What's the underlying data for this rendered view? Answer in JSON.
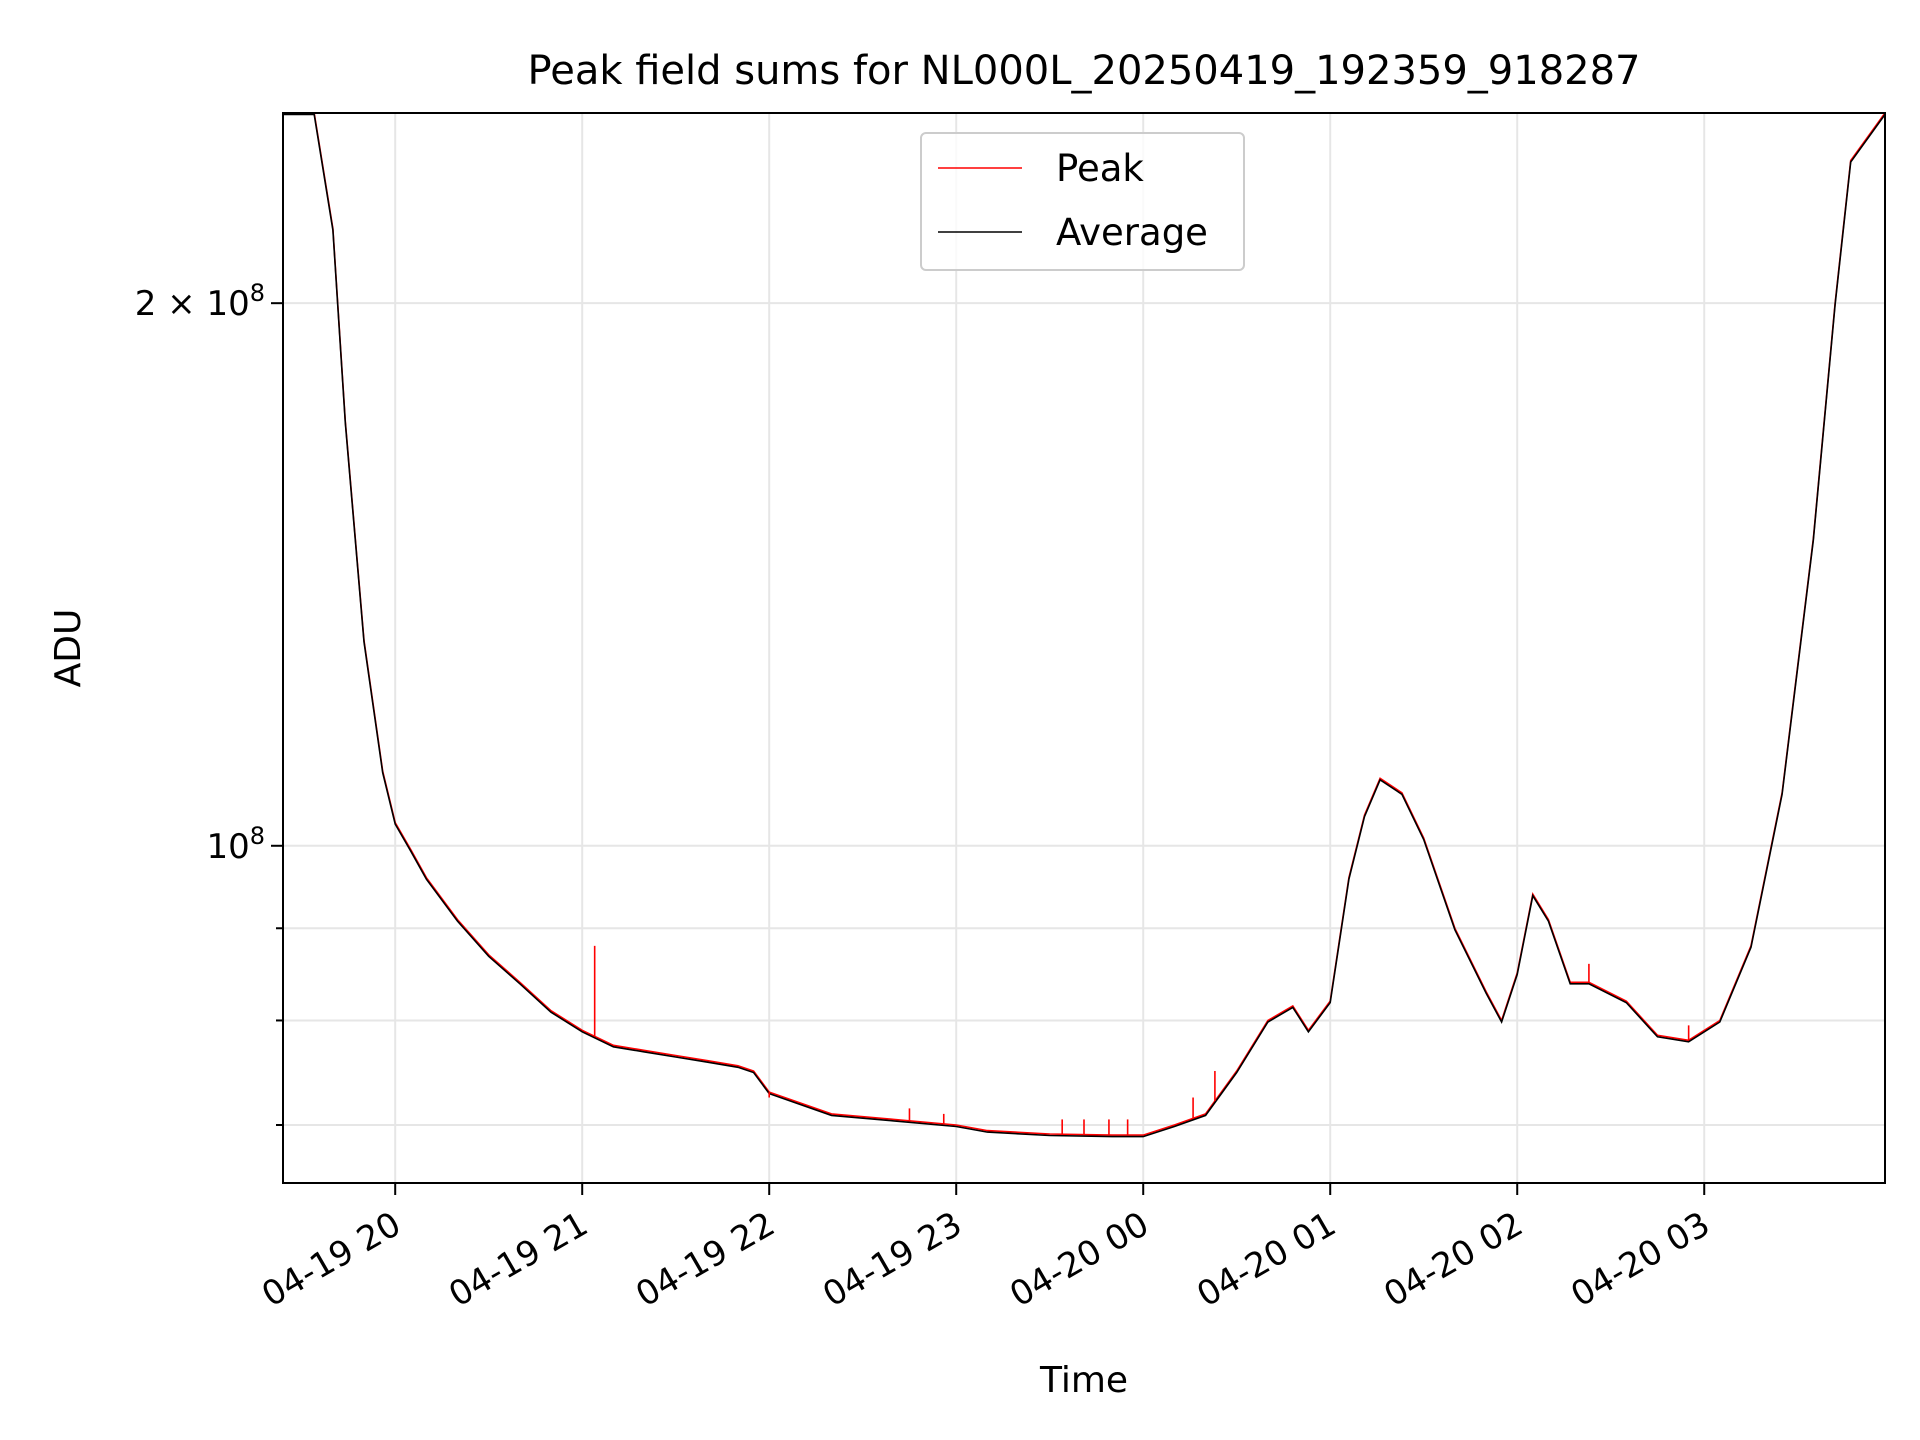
{
  "chart_data": {
    "type": "line",
    "title": "Peak field sums for NL000L_20250419_192359_918287",
    "xlabel": "Time",
    "ylabel": "ADU",
    "y_scale": "log",
    "ylim": [
      65000000,
      255000000
    ],
    "xlim": [
      "2025-04-19 19:24",
      "2025-04-20 03:58"
    ],
    "x_ticks": [
      "04-19 20",
      "04-19 21",
      "04-19 22",
      "04-19 23",
      "04-20 00",
      "04-20 01",
      "04-20 02",
      "04-20 03"
    ],
    "x_tick_times": [
      "2025-04-19 20:00",
      "2025-04-19 21:00",
      "2025-04-19 22:00",
      "2025-04-19 23:00",
      "2025-04-20 00:00",
      "2025-04-20 01:00",
      "2025-04-20 02:00",
      "2025-04-20 03:00"
    ],
    "y_major_ticks": [
      100000000,
      200000000
    ],
    "y_tick_labels": [
      "10",
      "8",
      "2 × 10",
      "8"
    ],
    "y_minor_ticks": [
      70000000,
      80000000,
      90000000
    ],
    "grid": true,
    "legend_position": "upper center",
    "series": [
      {
        "name": "Peak",
        "color": "#ff0000"
      },
      {
        "name": "Average",
        "color": "#000000"
      }
    ],
    "x": [
      "2025-04-19 19:24",
      "2025-04-19 19:34",
      "2025-04-19 19:40",
      "2025-04-19 19:44",
      "2025-04-19 19:50",
      "2025-04-19 19:56",
      "2025-04-19 20:00",
      "2025-04-19 20:05",
      "2025-04-19 20:10",
      "2025-04-19 20:20",
      "2025-04-19 20:30",
      "2025-04-19 20:40",
      "2025-04-19 20:50",
      "2025-04-19 21:00",
      "2025-04-19 21:10",
      "2025-04-19 21:20",
      "2025-04-19 21:30",
      "2025-04-19 21:40",
      "2025-04-19 21:50",
      "2025-04-19 21:55",
      "2025-04-19 22:00",
      "2025-04-19 22:20",
      "2025-04-19 22:40",
      "2025-04-19 23:00",
      "2025-04-19 23:10",
      "2025-04-19 23:30",
      "2025-04-19 23:50",
      "2025-04-20 00:00",
      "2025-04-20 00:10",
      "2025-04-20 00:20",
      "2025-04-20 00:30",
      "2025-04-20 00:40",
      "2025-04-20 00:48",
      "2025-04-20 00:53",
      "2025-04-20 01:00",
      "2025-04-20 01:06",
      "2025-04-20 01:11",
      "2025-04-20 01:16",
      "2025-04-20 01:23",
      "2025-04-20 01:30",
      "2025-04-20 01:40",
      "2025-04-20 01:50",
      "2025-04-20 01:55",
      "2025-04-20 02:00",
      "2025-04-20 02:05",
      "2025-04-20 02:10",
      "2025-04-20 02:17",
      "2025-04-20 02:23",
      "2025-04-20 02:35",
      "2025-04-20 02:45",
      "2025-04-20 02:55",
      "2025-04-20 03:05",
      "2025-04-20 03:15",
      "2025-04-20 03:25",
      "2025-04-20 03:35",
      "2025-04-20 03:42",
      "2025-04-20 03:47",
      "2025-04-20 03:58"
    ],
    "values": [
      255000000,
      255000000,
      220000000,
      172000000,
      130000000,
      110000000,
      103000000,
      99500000,
      96000000,
      91000000,
      87000000,
      84000000,
      81000000,
      79000000,
      77500000,
      77000000,
      76500000,
      76000000,
      75500000,
      75000000,
      73000000,
      71000000,
      70500000,
      70000000,
      69500000,
      69200000,
      69100000,
      69100000,
      70000000,
      71000000,
      75000000,
      80000000,
      81500000,
      79000000,
      82000000,
      96000000,
      104000000,
      109000000,
      107000000,
      101000000,
      90000000,
      83000000,
      80000000,
      85000000,
      94000000,
      91000000,
      84000000,
      84000000,
      82000000,
      78500000,
      78000000,
      80000000,
      88000000,
      107000000,
      148000000,
      200000000,
      240000000,
      255000000
    ],
    "peak_spikes": [
      {
        "x": "2025-04-19 21:04",
        "value": 88000000
      },
      {
        "x": "2025-04-19 22:00",
        "value": 72500000
      },
      {
        "x": "2025-04-19 22:45",
        "value": 71500000
      },
      {
        "x": "2025-04-19 22:56",
        "value": 71000000
      },
      {
        "x": "2025-04-19 23:34",
        "value": 70500000
      },
      {
        "x": "2025-04-19 23:41",
        "value": 70500000
      },
      {
        "x": "2025-04-19 23:49",
        "value": 70500000
      },
      {
        "x": "2025-04-19 23:55",
        "value": 70500000
      },
      {
        "x": "2025-04-20 00:16",
        "value": 72500000
      },
      {
        "x": "2025-04-20 00:23",
        "value": 75000000
      },
      {
        "x": "2025-04-20 02:23",
        "value": 86000000
      },
      {
        "x": "2025-04-20 02:55",
        "value": 79500000
      }
    ]
  }
}
